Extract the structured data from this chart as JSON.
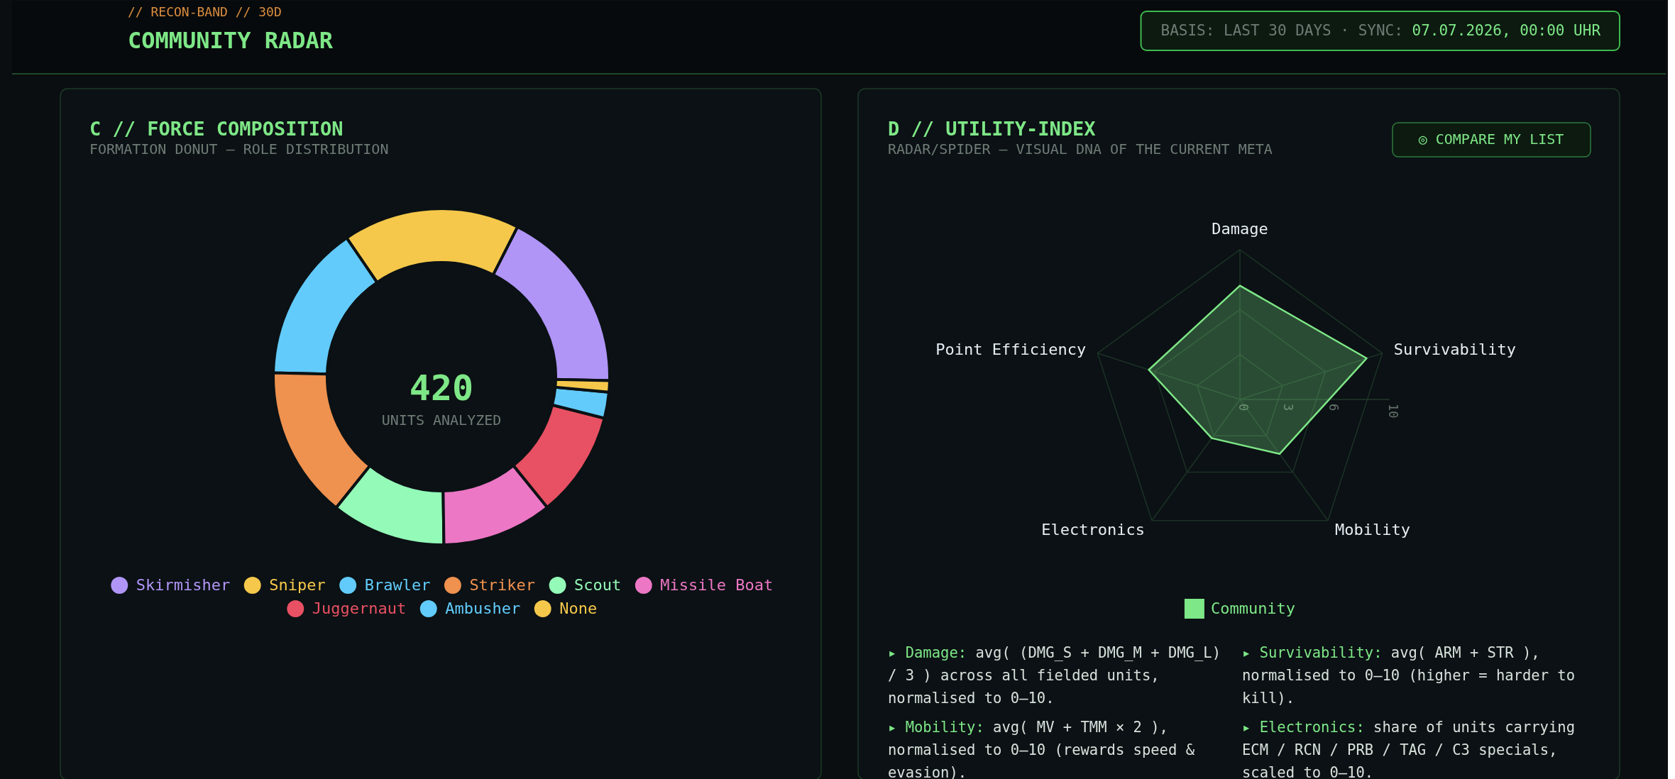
{
  "chart_data": [
    {
      "type": "donut",
      "title": "C // FORCE COMPOSITION",
      "subtitle": "FORMATION DONUT — ROLE DISTRIBUTION",
      "categories": [
        "Skirmisher",
        "Sniper",
        "Brawler",
        "Striker",
        "Scout",
        "Missile Boat",
        "Juggernaut",
        "Ambusher",
        "None"
      ],
      "values": [
        17.9,
        17.0,
        15.1,
        14.6,
        11.0,
        10.6,
        10.2,
        2.5,
        1.1
      ],
      "colors": [
        "#b095f7",
        "#f5c84b",
        "#62cbfb",
        "#ef914f",
        "#94fab8",
        "#ec77c5",
        "#e85063",
        "#62cbfb",
        "#f5c84b"
      ],
      "legend": "bottom",
      "annotations": [
        "// RECON-BAND // 30D",
        "COMMUNITY RADAR",
        "BASIS: LAST 30 DAYS · SYNC:",
        "07.07.2026, 00:00 UHR",
        "420",
        "UNITS ANALYZED"
      ]
    },
    {
      "type": "radar",
      "title": "D // UTILITY-INDEX",
      "subtitle": "RADAR/SPIDER — VISUAL DNA OF THE CURRENT META",
      "categories": [
        "Damage",
        "Survivability",
        "Mobility",
        "Electronics",
        "Point Efficiency"
      ],
      "series": [
        {
          "name": "Community",
          "color": "#7ee787",
          "values": [
            7.6,
            8.9,
            4.5,
            3.2,
            6.4
          ]
        }
      ],
      "ylim": [
        0,
        10
      ],
      "yticks": [
        0,
        3,
        6,
        10
      ],
      "grid": true,
      "legend": "bottom",
      "annotations": [
        "◎ COMPARE MY LIST",
        "▸ Damage: avg( (DMG_S + DMG_M + DMG_L) / 3 ) across all fielded units, normalised to 0–10.",
        "▸ Survivability: avg( ARM + STR ), normalised to 0–10 (higher = harder to kill).",
        "▸ Mobility: avg( MV + TMM × 2 ), normalised to 0–10 (rewards speed & evasion).",
        "▸ Electronics: share of units carrying ECM / RCN / PRB / TAG / C3 specials, scaled to 0–10."
      ]
    }
  ]
}
